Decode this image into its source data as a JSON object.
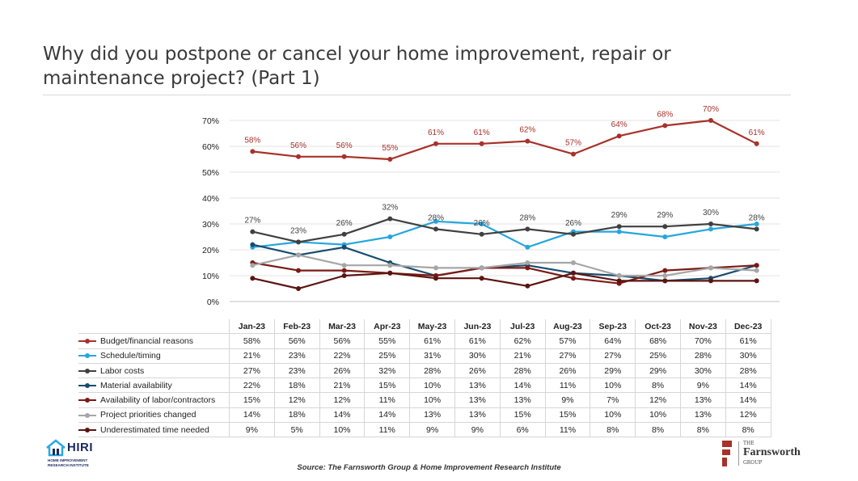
{
  "title": "Why did you postpone or cancel your home improvement, repair or maintenance project? (Part 1)",
  "source": "Source: The Farnsworth Group & Home Improvement Research Institute",
  "logos": {
    "hiri_name": "HIRI",
    "hiri_sub": "HOME IMPROVEMENT RESEARCH INSTITUTE",
    "farnsworth_the": "THE",
    "farnsworth_name": "Farnsworth",
    "farnsworth_group": "GROUP"
  },
  "chart_data": {
    "type": "line",
    "title": "Why did you postpone or cancel your home improvement, repair or maintenance project? (Part 1)",
    "xlabel": "",
    "ylabel": "",
    "ylim": [
      0,
      70
    ],
    "yticks": [
      "0%",
      "10%",
      "20%",
      "30%",
      "40%",
      "50%",
      "60%",
      "70%"
    ],
    "grid": true,
    "categories": [
      "Jan-23",
      "Feb-23",
      "Mar-23",
      "Apr-23",
      "May-23",
      "Jun-23",
      "Jul-23",
      "Aug-23",
      "Sep-23",
      "Oct-23",
      "Nov-23",
      "Dec-23"
    ],
    "series": [
      {
        "name": "Budget/financial reasons",
        "color": "#a8312a",
        "labels": true,
        "values": [
          58,
          56,
          56,
          55,
          61,
          61,
          62,
          57,
          64,
          68,
          70,
          61
        ]
      },
      {
        "name": "Schedule/timing",
        "color": "#26a6dd",
        "labels": false,
        "values": [
          21,
          23,
          22,
          25,
          31,
          30,
          21,
          27,
          27,
          25,
          28,
          30
        ]
      },
      {
        "name": "Labor costs",
        "color": "#404040",
        "labels": true,
        "values": [
          27,
          23,
          26,
          32,
          28,
          26,
          28,
          26,
          29,
          29,
          30,
          28
        ]
      },
      {
        "name": "Material availability",
        "color": "#174c6e",
        "labels": false,
        "values": [
          22,
          18,
          21,
          15,
          10,
          13,
          14,
          11,
          10,
          8,
          9,
          14
        ]
      },
      {
        "name": "Availability of labor/contractors",
        "color": "#7b1a14",
        "labels": false,
        "values": [
          15,
          12,
          12,
          11,
          10,
          13,
          13,
          9,
          7,
          12,
          13,
          14
        ]
      },
      {
        "name": "Project priorities changed",
        "color": "#a6a6a6",
        "labels": false,
        "values": [
          14,
          18,
          14,
          14,
          13,
          13,
          15,
          15,
          10,
          10,
          13,
          12
        ]
      },
      {
        "name": "Underestimated time needed",
        "color": "#5c1410",
        "labels": false,
        "values": [
          9,
          5,
          10,
          11,
          9,
          9,
          6,
          11,
          8,
          8,
          8,
          8
        ]
      }
    ]
  }
}
